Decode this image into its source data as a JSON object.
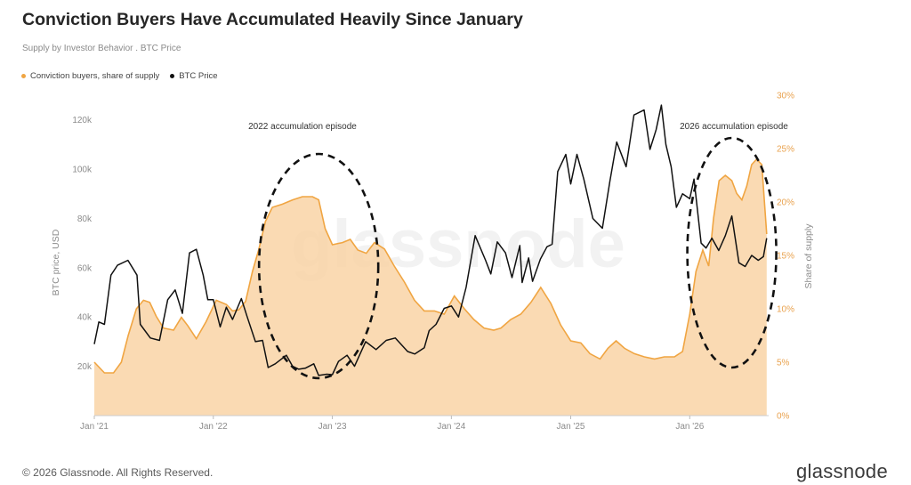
{
  "header": {
    "title": "Conviction Buyers Have Accumulated Heavily Since January",
    "subtitle": "Supply by Investor Behavior . BTC Price"
  },
  "legend": {
    "items": [
      {
        "label": "Conviction buyers, share of supply",
        "color": "#f0a542"
      },
      {
        "label": "BTC Price",
        "color": "#111111"
      }
    ]
  },
  "watermark": "glassnode",
  "footer": {
    "copyright": "© 2026 Glassnode. All Rights Reserved.",
    "brand": "glassnode"
  },
  "chart_data": {
    "type": "line",
    "xlabel": "",
    "ylabel": "BTC price, USD",
    "y2label": "Share of supply",
    "ylim": [
      0,
      130000
    ],
    "y2lim": [
      0,
      30
    ],
    "x_range": [
      "2021-01-01",
      "2026-08-31"
    ],
    "x_ticks": [
      "Jan '21",
      "Jan '22",
      "Jan '23",
      "Jan '24",
      "Jan '25",
      "Jan '26"
    ],
    "y_ticks": [
      "20k",
      "40k",
      "60k",
      "80k",
      "100k",
      "120k"
    ],
    "y2_ticks": [
      "0%",
      "5%",
      "10%",
      "15%",
      "20%",
      "25%",
      "30%"
    ],
    "grid": false,
    "legend_position": "top-left",
    "annotations": [
      {
        "text": "2022 accumulation episode",
        "x": "2022-11-20"
      },
      {
        "text": "2026 accumulation episode",
        "x": "2026-05-10"
      }
    ],
    "series": [
      {
        "name": "BTC Price",
        "color": "#111111",
        "axis": "left",
        "x": [
          "2021-01-01",
          "2021-01-15",
          "2021-02-01",
          "2021-02-21",
          "2021-03-13",
          "2021-04-14",
          "2021-05-12",
          "2021-05-22",
          "2021-06-22",
          "2021-07-20",
          "2021-08-14",
          "2021-09-06",
          "2021-09-28",
          "2021-10-20",
          "2021-11-10",
          "2021-12-01",
          "2021-12-15",
          "2022-01-01",
          "2022-01-22",
          "2022-02-10",
          "2022-03-01",
          "2022-03-28",
          "2022-04-15",
          "2022-05-10",
          "2022-06-01",
          "2022-06-18",
          "2022-07-10",
          "2022-08-13",
          "2022-09-01",
          "2022-09-20",
          "2022-10-10",
          "2022-11-05",
          "2022-11-20",
          "2022-12-15",
          "2023-01-01",
          "2023-01-20",
          "2023-02-15",
          "2023-03-10",
          "2023-04-13",
          "2023-05-15",
          "2023-06-15",
          "2023-07-13",
          "2023-08-20",
          "2023-09-11",
          "2023-10-10",
          "2023-10-25",
          "2023-11-15",
          "2023-12-10",
          "2024-01-01",
          "2024-01-23",
          "2024-02-15",
          "2024-03-14",
          "2024-04-15",
          "2024-05-01",
          "2024-05-21",
          "2024-06-15",
          "2024-07-05",
          "2024-07-29",
          "2024-08-05",
          "2024-08-25",
          "2024-09-06",
          "2024-09-30",
          "2024-10-20",
          "2024-11-05",
          "2024-11-22",
          "2024-12-17",
          "2025-01-01",
          "2025-01-20",
          "2025-02-10",
          "2025-03-10",
          "2025-04-08",
          "2025-05-01",
          "2025-05-22",
          "2025-06-20",
          "2025-07-14",
          "2025-08-14",
          "2025-09-01",
          "2025-09-20",
          "2025-10-06",
          "2025-10-20",
          "2025-11-05",
          "2025-11-21",
          "2025-12-10",
          "2026-01-01",
          "2026-01-14",
          "2026-02-05",
          "2026-02-20",
          "2026-03-10",
          "2026-03-31",
          "2026-04-20",
          "2026-05-10",
          "2026-06-01",
          "2026-06-20",
          "2026-07-10",
          "2026-07-30",
          "2026-08-15",
          "2026-08-25"
        ],
        "y": [
          29000,
          38000,
          37000,
          57000,
          61000,
          63000,
          57000,
          37000,
          31500,
          30500,
          47000,
          51000,
          41500,
          66000,
          67500,
          57000,
          47000,
          47000,
          36000,
          44000,
          39000,
          47500,
          40000,
          30000,
          30500,
          19500,
          21000,
          24500,
          20000,
          18800,
          19200,
          21000,
          16300,
          16800,
          16600,
          22000,
          24500,
          20000,
          30000,
          26800,
          30500,
          31500,
          26000,
          25000,
          27500,
          34500,
          37000,
          43500,
          44500,
          40000,
          52000,
          73000,
          63000,
          57500,
          70500,
          66000,
          56000,
          69000,
          54000,
          64000,
          54500,
          63500,
          68500,
          69500,
          99000,
          106000,
          94000,
          106000,
          96000,
          80000,
          76000,
          95000,
          111000,
          101000,
          122000,
          124000,
          108000,
          116000,
          126000,
          110000,
          101000,
          84500,
          90000,
          88000,
          96000,
          70000,
          68000,
          72000,
          67000,
          73000,
          81000,
          62000,
          60500,
          65000,
          63000,
          64500,
          72000
        ]
      },
      {
        "name": "Conviction buyers, share of supply",
        "color": "#f0a542",
        "axis": "right",
        "x": [
          "2021-01-01",
          "2021-02-01",
          "2021-03-01",
          "2021-03-25",
          "2021-04-15",
          "2021-05-10",
          "2021-06-01",
          "2021-06-20",
          "2021-07-10",
          "2021-08-01",
          "2021-09-01",
          "2021-09-25",
          "2021-10-15",
          "2021-11-10",
          "2021-12-10",
          "2022-01-10",
          "2022-02-10",
          "2022-03-01",
          "2022-03-20",
          "2022-04-10",
          "2022-05-01",
          "2022-05-20",
          "2022-06-10",
          "2022-07-01",
          "2022-08-01",
          "2022-09-01",
          "2022-10-01",
          "2022-11-01",
          "2022-11-20",
          "2022-12-10",
          "2023-01-01",
          "2023-02-01",
          "2023-02-25",
          "2023-03-20",
          "2023-04-15",
          "2023-05-10",
          "2023-06-10",
          "2023-07-10",
          "2023-08-10",
          "2023-09-10",
          "2023-10-10",
          "2023-11-10",
          "2023-12-10",
          "2024-01-10",
          "2024-02-10",
          "2024-03-10",
          "2024-04-10",
          "2024-05-10",
          "2024-06-01",
          "2024-07-01",
          "2024-08-01",
          "2024-09-01",
          "2024-10-01",
          "2024-11-01",
          "2024-12-01",
          "2025-01-01",
          "2025-02-01",
          "2025-03-01",
          "2025-04-01",
          "2025-04-25",
          "2025-05-20",
          "2025-06-15",
          "2025-07-15",
          "2025-08-15",
          "2025-09-15",
          "2025-10-15",
          "2025-11-15",
          "2025-12-10",
          "2026-01-01",
          "2026-01-20",
          "2026-02-10",
          "2026-02-28",
          "2026-03-15",
          "2026-04-01",
          "2026-04-20",
          "2026-05-10",
          "2026-05-25",
          "2026-06-10",
          "2026-06-25",
          "2026-07-10",
          "2026-07-25",
          "2026-08-10",
          "2026-08-25"
        ],
        "y": [
          5.0,
          4.0,
          4.0,
          5.0,
          7.5,
          10.0,
          10.8,
          10.6,
          9.3,
          8.2,
          8.0,
          9.2,
          8.4,
          7.2,
          8.8,
          10.8,
          10.4,
          9.8,
          9.9,
          10.7,
          13.5,
          15.5,
          18.2,
          19.5,
          19.8,
          20.2,
          20.5,
          20.5,
          20.2,
          17.5,
          16.0,
          16.2,
          16.5,
          15.5,
          15.2,
          16.2,
          15.6,
          14.0,
          12.5,
          10.8,
          9.8,
          9.8,
          9.5,
          11.2,
          10.0,
          9.0,
          8.2,
          8.0,
          8.2,
          9.0,
          9.5,
          10.6,
          12.0,
          10.5,
          8.5,
          7.0,
          6.8,
          5.8,
          5.3,
          6.3,
          7.0,
          6.3,
          5.8,
          5.5,
          5.3,
          5.5,
          5.5,
          6.0,
          9.5,
          13.5,
          15.5,
          14.0,
          18.5,
          22.0,
          22.5,
          22.0,
          20.8,
          20.2,
          21.5,
          23.5,
          24.0,
          23.5,
          17.0
        ]
      }
    ]
  }
}
